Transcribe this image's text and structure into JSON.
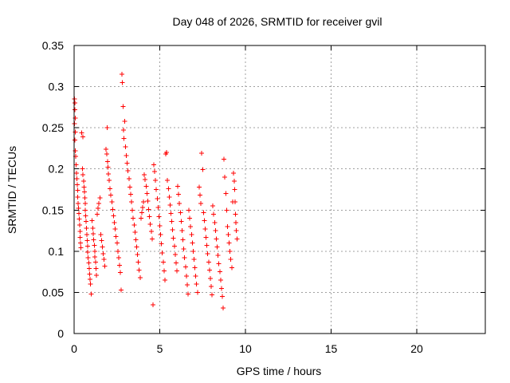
{
  "chart_data": {
    "type": "scatter",
    "title": "Day 048 of 2026, SRMTID for receiver gvil",
    "xlabel": "GPS time / hours",
    "ylabel": "SRMTID / TECUs",
    "xlim": [
      0,
      24
    ],
    "ylim": [
      0,
      0.35
    ],
    "x_ticks": [
      0,
      5,
      10,
      15,
      20
    ],
    "x_tick_labels": [
      "0",
      "5",
      "10",
      "15",
      "20"
    ],
    "y_ticks": [
      0,
      0.05,
      0.1,
      0.15,
      0.2,
      0.25,
      0.3,
      0.35
    ],
    "y_tick_labels": [
      "0",
      "0.05",
      "0.1",
      "0.15",
      "0.2",
      "0.25",
      "0.3",
      "0.35"
    ],
    "grid": true,
    "marker": "plus",
    "series": [
      {
        "color": "#ff0000",
        "points": [
          [
            0.02,
            0.285
          ],
          [
            0.04,
            0.28
          ],
          [
            0.05,
            0.272
          ],
          [
            0.06,
            0.262
          ],
          [
            0.03,
            0.255
          ],
          [
            0.07,
            0.245
          ],
          [
            0.04,
            0.235
          ],
          [
            0.08,
            0.222
          ],
          [
            0.1,
            0.215
          ],
          [
            0.12,
            0.205
          ],
          [
            0.14,
            0.195
          ],
          [
            0.16,
            0.188
          ],
          [
            0.18,
            0.181
          ],
          [
            0.2,
            0.174
          ],
          [
            0.22,
            0.166
          ],
          [
            0.24,
            0.158
          ],
          [
            0.26,
            0.152
          ],
          [
            0.28,
            0.146
          ],
          [
            0.3,
            0.139
          ],
          [
            0.32,
            0.132
          ],
          [
            0.34,
            0.124
          ],
          [
            0.36,
            0.117
          ],
          [
            0.38,
            0.11
          ],
          [
            0.4,
            0.104
          ],
          [
            0.45,
            0.244
          ],
          [
            0.5,
            0.239
          ],
          [
            0.48,
            0.2
          ],
          [
            0.52,
            0.193
          ],
          [
            0.55,
            0.185
          ],
          [
            0.58,
            0.178
          ],
          [
            0.6,
            0.172
          ],
          [
            0.62,
            0.165
          ],
          [
            0.64,
            0.158
          ],
          [
            0.66,
            0.15
          ],
          [
            0.68,
            0.143
          ],
          [
            0.7,
            0.136
          ],
          [
            0.72,
            0.128
          ],
          [
            0.74,
            0.12
          ],
          [
            0.76,
            0.113
          ],
          [
            0.78,
            0.106
          ],
          [
            0.8,
            0.099
          ],
          [
            0.82,
            0.092
          ],
          [
            0.85,
            0.086
          ],
          [
            0.88,
            0.079
          ],
          [
            0.9,
            0.072
          ],
          [
            0.92,
            0.066
          ],
          [
            0.95,
            0.06
          ],
          [
            1.0,
            0.048
          ],
          [
            1.05,
            0.137
          ],
          [
            1.1,
            0.128
          ],
          [
            1.12,
            0.121
          ],
          [
            1.15,
            0.114
          ],
          [
            1.18,
            0.107
          ],
          [
            1.2,
            0.1
          ],
          [
            1.22,
            0.093
          ],
          [
            1.25,
            0.087
          ],
          [
            1.28,
            0.079
          ],
          [
            1.3,
            0.071
          ],
          [
            1.35,
            0.145
          ],
          [
            1.4,
            0.152
          ],
          [
            1.45,
            0.158
          ],
          [
            1.5,
            0.165
          ],
          [
            1.55,
            0.12
          ],
          [
            1.6,
            0.113
          ],
          [
            1.65,
            0.105
          ],
          [
            1.7,
            0.097
          ],
          [
            1.75,
            0.09
          ],
          [
            1.8,
            0.082
          ],
          [
            1.85,
            0.224
          ],
          [
            1.9,
            0.218
          ],
          [
            1.92,
            0.25
          ],
          [
            1.95,
            0.209
          ],
          [
            1.98,
            0.202
          ],
          [
            2.0,
            0.194
          ],
          [
            2.05,
            0.186
          ],
          [
            2.1,
            0.176
          ],
          [
            2.15,
            0.168
          ],
          [
            2.2,
            0.16
          ],
          [
            2.25,
            0.151
          ],
          [
            2.3,
            0.143
          ],
          [
            2.35,
            0.135
          ],
          [
            2.4,
            0.127
          ],
          [
            2.45,
            0.118
          ],
          [
            2.5,
            0.11
          ],
          [
            2.55,
            0.1
          ],
          [
            2.6,
            0.092
          ],
          [
            2.65,
            0.083
          ],
          [
            2.7,
            0.074
          ],
          [
            2.75,
            0.053
          ],
          [
            2.8,
            0.315
          ],
          [
            2.82,
            0.305
          ],
          [
            2.85,
            0.276
          ],
          [
            2.88,
            0.247
          ],
          [
            2.9,
            0.237
          ],
          [
            2.95,
            0.258
          ],
          [
            3.0,
            0.227
          ],
          [
            3.05,
            0.216
          ],
          [
            3.1,
            0.207
          ],
          [
            3.15,
            0.198
          ],
          [
            3.2,
            0.188
          ],
          [
            3.25,
            0.178
          ],
          [
            3.3,
            0.169
          ],
          [
            3.35,
            0.16
          ],
          [
            3.4,
            0.15
          ],
          [
            3.45,
            0.14
          ],
          [
            3.5,
            0.132
          ],
          [
            3.55,
            0.123
          ],
          [
            3.6,
            0.114
          ],
          [
            3.65,
            0.105
          ],
          [
            3.7,
            0.096
          ],
          [
            3.75,
            0.087
          ],
          [
            3.8,
            0.077
          ],
          [
            3.85,
            0.068
          ],
          [
            3.9,
            0.14
          ],
          [
            3.95,
            0.147
          ],
          [
            4.0,
            0.153
          ],
          [
            4.05,
            0.16
          ],
          [
            4.1,
            0.193
          ],
          [
            4.15,
            0.187
          ],
          [
            4.2,
            0.179
          ],
          [
            4.25,
            0.17
          ],
          [
            4.3,
            0.161
          ],
          [
            4.35,
            0.151
          ],
          [
            4.4,
            0.142
          ],
          [
            4.45,
            0.133
          ],
          [
            4.5,
            0.124
          ],
          [
            4.55,
            0.115
          ],
          [
            4.6,
            0.035
          ],
          [
            4.65,
            0.205
          ],
          [
            4.7,
            0.197
          ],
          [
            4.75,
            0.186
          ],
          [
            4.8,
            0.175
          ],
          [
            4.85,
            0.164
          ],
          [
            4.9,
            0.153
          ],
          [
            4.95,
            0.142
          ],
          [
            5.0,
            0.131
          ],
          [
            5.05,
            0.12
          ],
          [
            5.1,
            0.109
          ],
          [
            5.15,
            0.098
          ],
          [
            5.2,
            0.087
          ],
          [
            5.25,
            0.076
          ],
          [
            5.3,
            0.065
          ],
          [
            5.35,
            0.218
          ],
          [
            5.4,
            0.22
          ],
          [
            5.45,
            0.186
          ],
          [
            5.5,
            0.176
          ],
          [
            5.55,
            0.166
          ],
          [
            5.6,
            0.156
          ],
          [
            5.65,
            0.146
          ],
          [
            5.7,
            0.136
          ],
          [
            5.75,
            0.126
          ],
          [
            5.8,
            0.116
          ],
          [
            5.85,
            0.106
          ],
          [
            5.9,
            0.096
          ],
          [
            5.95,
            0.086
          ],
          [
            6.0,
            0.076
          ],
          [
            6.05,
            0.179
          ],
          [
            6.1,
            0.169
          ],
          [
            6.15,
            0.158
          ],
          [
            6.2,
            0.147
          ],
          [
            6.25,
            0.136
          ],
          [
            6.3,
            0.125
          ],
          [
            6.35,
            0.114
          ],
          [
            6.4,
            0.103
          ],
          [
            6.45,
            0.092
          ],
          [
            6.5,
            0.081
          ],
          [
            6.55,
            0.07
          ],
          [
            6.6,
            0.059
          ],
          [
            6.65,
            0.048
          ],
          [
            6.7,
            0.15
          ],
          [
            6.75,
            0.14
          ],
          [
            6.8,
            0.13
          ],
          [
            6.85,
            0.12
          ],
          [
            6.9,
            0.11
          ],
          [
            6.95,
            0.1
          ],
          [
            7.0,
            0.09
          ],
          [
            7.05,
            0.08
          ],
          [
            7.1,
            0.07
          ],
          [
            7.15,
            0.06
          ],
          [
            7.2,
            0.05
          ],
          [
            7.3,
            0.178
          ],
          [
            7.35,
            0.168
          ],
          [
            7.4,
            0.158
          ],
          [
            7.45,
            0.219
          ],
          [
            7.5,
            0.199
          ],
          [
            7.55,
            0.147
          ],
          [
            7.6,
            0.137
          ],
          [
            7.65,
            0.127
          ],
          [
            7.7,
            0.117
          ],
          [
            7.75,
            0.107
          ],
          [
            7.8,
            0.097
          ],
          [
            7.85,
            0.087
          ],
          [
            7.9,
            0.077
          ],
          [
            7.95,
            0.067
          ],
          [
            8.0,
            0.057
          ],
          [
            8.05,
            0.047
          ],
          [
            8.1,
            0.155
          ],
          [
            8.15,
            0.145
          ],
          [
            8.2,
            0.135
          ],
          [
            8.25,
            0.125
          ],
          [
            8.3,
            0.115
          ],
          [
            8.35,
            0.105
          ],
          [
            8.4,
            0.095
          ],
          [
            8.45,
            0.085
          ],
          [
            8.5,
            0.075
          ],
          [
            8.55,
            0.065
          ],
          [
            8.6,
            0.055
          ],
          [
            8.65,
            0.045
          ],
          [
            8.7,
            0.031
          ],
          [
            8.75,
            0.212
          ],
          [
            8.8,
            0.19
          ],
          [
            8.85,
            0.17
          ],
          [
            8.9,
            0.15
          ],
          [
            8.95,
            0.13
          ],
          [
            9.0,
            0.12
          ],
          [
            9.05,
            0.11
          ],
          [
            9.1,
            0.1
          ],
          [
            9.15,
            0.09
          ],
          [
            9.2,
            0.08
          ],
          [
            9.25,
            0.16
          ],
          [
            9.3,
            0.195
          ],
          [
            9.35,
            0.185
          ],
          [
            9.38,
            0.175
          ],
          [
            9.4,
            0.16
          ],
          [
            9.42,
            0.145
          ],
          [
            9.45,
            0.135
          ],
          [
            9.47,
            0.125
          ],
          [
            9.5,
            0.115
          ]
        ]
      }
    ]
  }
}
